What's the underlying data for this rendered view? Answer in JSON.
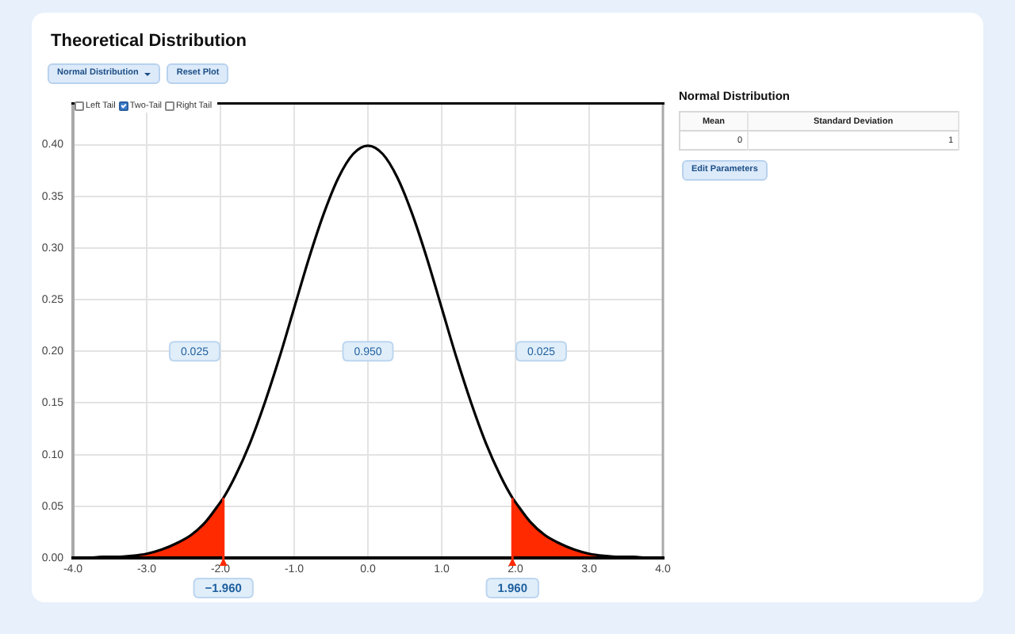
{
  "chart_data": [
    {
      "type": "line",
      "title": "Theoretical Distribution",
      "xlim": [
        -4,
        4
      ],
      "xticks": [
        {
          "value": -4,
          "label": "-4.0"
        },
        {
          "value": -3,
          "label": "-3.0"
        },
        {
          "value": -2,
          "label": "-2.0"
        },
        {
          "value": -1,
          "label": "-1.0"
        },
        {
          "value": 0,
          "label": "0.0"
        },
        {
          "value": 1,
          "label": "1.0"
        },
        {
          "value": 2,
          "label": "2.0"
        },
        {
          "value": 3,
          "label": "3.0"
        },
        {
          "value": 4,
          "label": "4.0"
        }
      ],
      "ylim": [
        0,
        0.44
      ],
      "yticks": [
        {
          "value": 0,
          "label": "0.00"
        },
        {
          "value": 0.05,
          "label": "0.05"
        },
        {
          "value": 0.1,
          "label": "0.10"
        },
        {
          "value": 0.15,
          "label": "0.15"
        },
        {
          "value": 0.2,
          "label": "0.20"
        },
        {
          "value": 0.25,
          "label": "0.25"
        },
        {
          "value": 0.3,
          "label": "0.30"
        },
        {
          "value": 0.35,
          "label": "0.35"
        },
        {
          "value": 0.4,
          "label": "0.40"
        }
      ],
      "grid": true,
      "marker": "none",
      "series": [
        {
          "type": "line",
          "color": "#000000",
          "x": [
            -4,
            -3.8,
            -3.6,
            -3.4,
            -3.2,
            -3,
            -2.8,
            -2.6,
            -2.4,
            -2.2,
            -2,
            -1.96,
            -1.8,
            -1.6,
            -1.4,
            -1.2,
            -1,
            -0.8,
            -0.6,
            -0.4,
            -0.2,
            0,
            0.2,
            0.4,
            0.6,
            0.8,
            1,
            1.2,
            1.4,
            1.6,
            1.8,
            1.96,
            2,
            2.2,
            2.4,
            2.6,
            2.8,
            3,
            3.2,
            3.4,
            3.6,
            3.8,
            4
          ],
          "values": [
            0,
            0,
            0.001,
            0.001,
            0.002,
            0.004,
            0.008,
            0.014,
            0.022,
            0.035,
            0.054,
            0.058,
            0.079,
            0.111,
            0.15,
            0.194,
            0.242,
            0.29,
            0.333,
            0.368,
            0.391,
            0.399,
            0.391,
            0.368,
            0.333,
            0.29,
            0.242,
            0.194,
            0.15,
            0.111,
            0.079,
            0.058,
            0.054,
            0.035,
            0.022,
            0.014,
            0.008,
            0.004,
            0.002,
            0.001,
            0.001,
            0,
            0
          ]
        },
        {
          "type": "area",
          "color": "#ff2a00",
          "x": [
            -4,
            -3.8,
            -3.6,
            -3.4,
            -3.2,
            -3,
            -2.8,
            -2.6,
            -2.4,
            -2.2,
            -2,
            -1.96
          ],
          "values": [
            0,
            0,
            0.001,
            0.001,
            0.002,
            0.004,
            0.008,
            0.014,
            0.022,
            0.035,
            0.054,
            0.058
          ]
        },
        {
          "type": "area",
          "color": "#ff2a00",
          "x": [
            1.96,
            2,
            2.2,
            2.4,
            2.6,
            2.8,
            3,
            3.2,
            3.4,
            3.6,
            3.8,
            4
          ],
          "values": [
            0.058,
            0.054,
            0.035,
            0.022,
            0.014,
            0.008,
            0.004,
            0.002,
            0.001,
            0.001,
            0,
            0
          ]
        }
      ],
      "ref_lines": [
        {
          "axis": "x",
          "value": -1.96,
          "label": "−1.960",
          "color": "#ff2a00"
        },
        {
          "axis": "x",
          "value": 1.96,
          "label": "1.960",
          "color": "#ff2a00"
        }
      ],
      "annotations": [
        "Normal Distribution",
        "Reset Plot",
        "Left Tail",
        "Two-Tail",
        "Right Tail",
        {
          "text": "0.025",
          "x": -2.35,
          "y": 0.2
        },
        {
          "text": "0.950",
          "x": 0,
          "y": 0.2
        },
        {
          "text": "0.025",
          "x": 2.35,
          "y": 0.2
        }
      ]
    },
    {
      "type": "other",
      "title": "Normal Distribution",
      "annotations": [
        "Mean",
        "Standard Deviation",
        "0",
        "1",
        "Edit Parameters"
      ]
    }
  ]
}
